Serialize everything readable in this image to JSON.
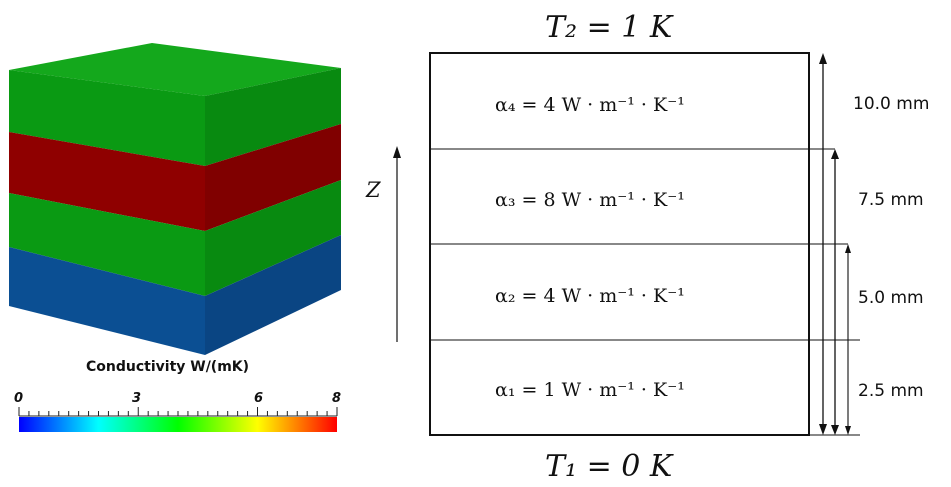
{
  "cube": {
    "layers": [
      {
        "name": "layer-1",
        "conductivity": 1,
        "color": "#0b4f93"
      },
      {
        "name": "layer-2",
        "conductivity": 4,
        "color": "#0a9a13"
      },
      {
        "name": "layer-3",
        "conductivity": 8,
        "color": "#8f0000"
      },
      {
        "name": "layer-4",
        "conductivity": 4,
        "color": "#0a9a13"
      }
    ]
  },
  "colorbar": {
    "title": "Conductivity W/(mK)",
    "min": 0,
    "max": 8,
    "tick_labels": [
      "0",
      "3",
      "6",
      "8"
    ],
    "gradient": [
      "#0000ff",
      "#00ffff",
      "#00ff00",
      "#ffff00",
      "#ff0000"
    ]
  },
  "schematic": {
    "top_temperature": "T₂ = 1 K",
    "bottom_temperature": "T₁ = 0 K",
    "axis_label": "Z",
    "layers": [
      {
        "label": "α₄ = 4 W · m⁻¹ · K⁻¹",
        "height_label": "10.0 mm"
      },
      {
        "label": "α₃ = 8 W · m⁻¹ · K⁻¹",
        "height_label": "7.5 mm"
      },
      {
        "label": "α₂ = 4 W · m⁻¹ · K⁻¹",
        "height_label": "5.0 mm"
      },
      {
        "label": "α₁ = 1 W · m⁻¹ · K⁻¹",
        "height_label": "2.5 mm"
      }
    ]
  }
}
